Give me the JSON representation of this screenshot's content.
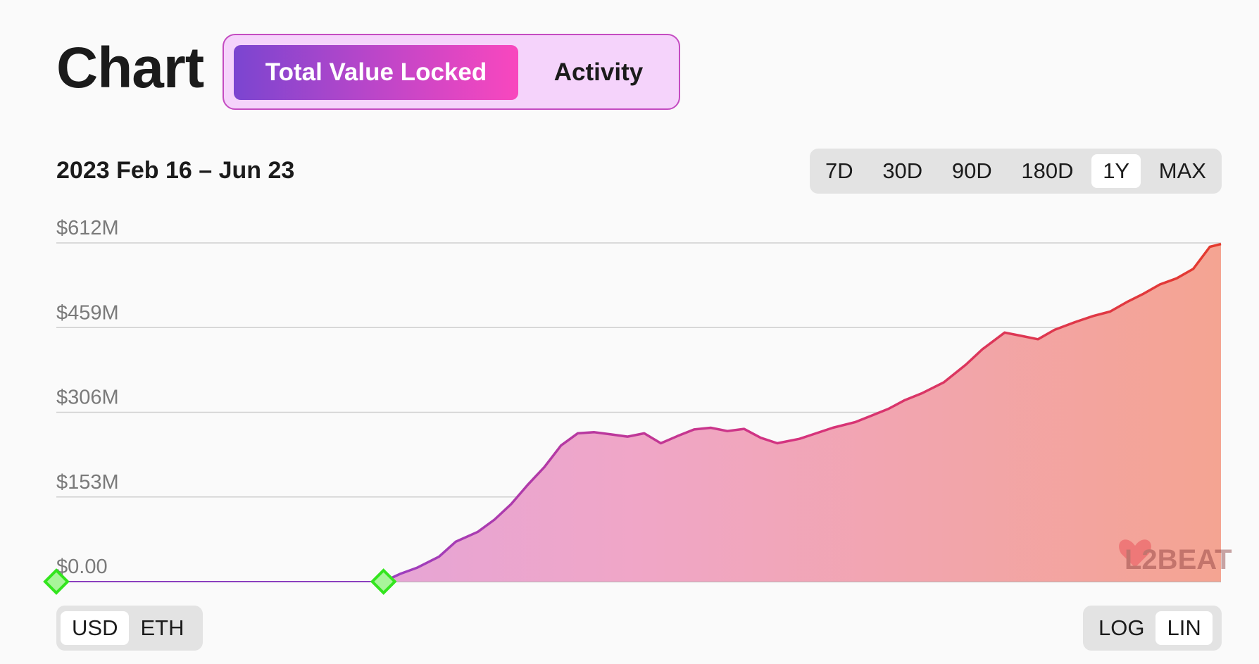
{
  "header": {
    "title": "Chart",
    "tabs": [
      {
        "label": "Total Value Locked",
        "active": true
      },
      {
        "label": "Activity",
        "active": false
      }
    ]
  },
  "date_range": "2023 Feb 16 – Jun 23",
  "range_buttons": [
    {
      "label": "7D",
      "selected": false
    },
    {
      "label": "30D",
      "selected": false
    },
    {
      "label": "90D",
      "selected": false
    },
    {
      "label": "180D",
      "selected": false
    },
    {
      "label": "1Y",
      "selected": true
    },
    {
      "label": "MAX",
      "selected": false
    }
  ],
  "currency_buttons": [
    {
      "label": "USD",
      "selected": true
    },
    {
      "label": "ETH",
      "selected": false
    }
  ],
  "scale_buttons": [
    {
      "label": "LOG",
      "selected": false
    },
    {
      "label": "LIN",
      "selected": true
    }
  ],
  "watermark": "L2BEAT",
  "colors": {
    "accent_start": "#7b45d0",
    "accent_end": "#f947be",
    "line_start": "#b23fb2",
    "line_end": "#e43a2d",
    "marker": "#33e51e"
  },
  "chart_data": {
    "type": "area",
    "yaxis_ticks": [
      "$0.00",
      "$153M",
      "$306M",
      "$459M",
      "$612M"
    ],
    "ylim": [
      0,
      612
    ],
    "y_unit": "$M",
    "scale": "linear",
    "grid": true,
    "x_index_range": [
      0,
      210
    ],
    "x": [
      0,
      59,
      62,
      65,
      69,
      72,
      76,
      79,
      82,
      85,
      88,
      91,
      94,
      97,
      100,
      103,
      106,
      109,
      112,
      115,
      118,
      121,
      124,
      127,
      130,
      134,
      137,
      140,
      144,
      147,
      150,
      153,
      156,
      160,
      164,
      167,
      171,
      174,
      177,
      180,
      184,
      187,
      190,
      193,
      196,
      199,
      202,
      205,
      208,
      210
    ],
    "values": [
      0,
      0,
      14,
      25,
      45,
      72,
      90,
      112,
      140,
      175,
      207,
      246,
      268,
      270,
      266,
      262,
      268,
      250,
      263,
      275,
      278,
      272,
      276,
      260,
      250,
      258,
      268,
      278,
      288,
      300,
      312,
      328,
      340,
      360,
      392,
      420,
      450,
      444,
      438,
      455,
      470,
      480,
      488,
      505,
      520,
      537,
      548,
      565,
      605,
      610
    ],
    "markers": [
      {
        "x": 0,
        "y": 0
      },
      {
        "x": 59,
        "y": 0
      }
    ]
  }
}
